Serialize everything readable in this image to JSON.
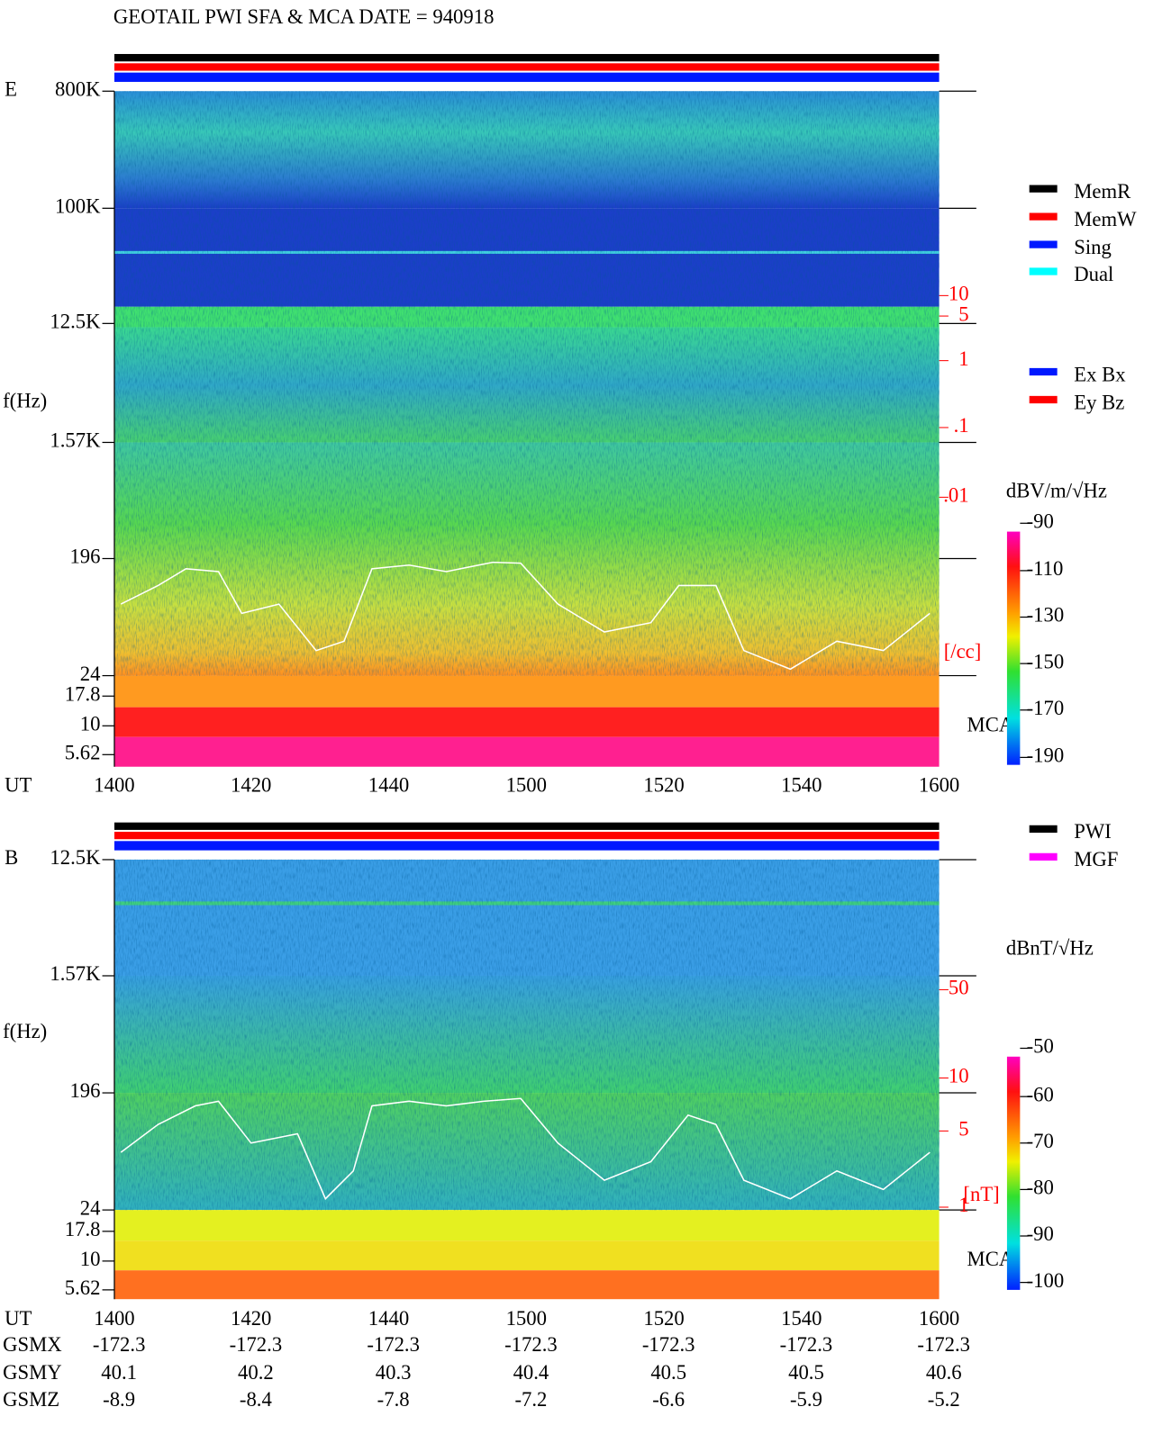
{
  "title": "GEOTAIL   PWI SFA & MCA   DATE = 940918",
  "panels": [
    {
      "label": "E",
      "ylabel": "f(Hz)",
      "freq_ticks": [
        "800K",
        "100K",
        "12.5K",
        "1.57K",
        "196",
        "24",
        "17.8",
        "10",
        "5.62"
      ],
      "density_ticks": [
        "10",
        "5",
        "1",
        ".1",
        ".01"
      ],
      "density_unit": "[/cc]",
      "mca": "MCA",
      "ut_label": "UT",
      "time_ticks": [
        "1400",
        "1420",
        "1440",
        "1500",
        "1520",
        "1540",
        "1600"
      ],
      "legend": [
        "MemR",
        "MemW",
        "Sing",
        "Dual",
        "Ex Bx",
        "Ey Bz"
      ],
      "colorbar": {
        "unit": "dBV/m/√Hz",
        "ticks": [
          "-90",
          "-110",
          "-130",
          "-150",
          "-170",
          "-190"
        ]
      }
    },
    {
      "label": "B",
      "ylabel": "f(Hz)",
      "freq_ticks": [
        "12.5K",
        "1.57K",
        "196",
        "24",
        "17.8",
        "10",
        "5.62"
      ],
      "density_ticks": [
        "50",
        "10",
        "5",
        "1"
      ],
      "density_unit": "[nT]",
      "mca": "MCA",
      "ut_label": "UT",
      "time_ticks": [
        "1400",
        "1420",
        "1440",
        "1500",
        "1520",
        "1540",
        "1600"
      ],
      "legend": [
        "PWI",
        "MGF"
      ],
      "colorbar": {
        "unit": "dBnT/√Hz",
        "ticks": [
          "-50",
          "-60",
          "-70",
          "-80",
          "-90",
          "-100"
        ]
      }
    }
  ],
  "orbit": [
    {
      "label": "GSMX",
      "values": [
        "-172.3",
        "-172.3",
        "-172.3",
        "-172.3",
        "-172.3",
        "-172.3",
        "-172.3"
      ]
    },
    {
      "label": "GSMY",
      "values": [
        "40.1",
        "40.2",
        "40.3",
        "40.4",
        "40.5",
        "40.5",
        "40.6"
      ]
    },
    {
      "label": "GSMZ",
      "values": [
        "-8.9",
        "-8.4",
        "-7.8",
        "-7.2",
        "-6.6",
        "-5.9",
        "-5.2"
      ]
    }
  ]
}
